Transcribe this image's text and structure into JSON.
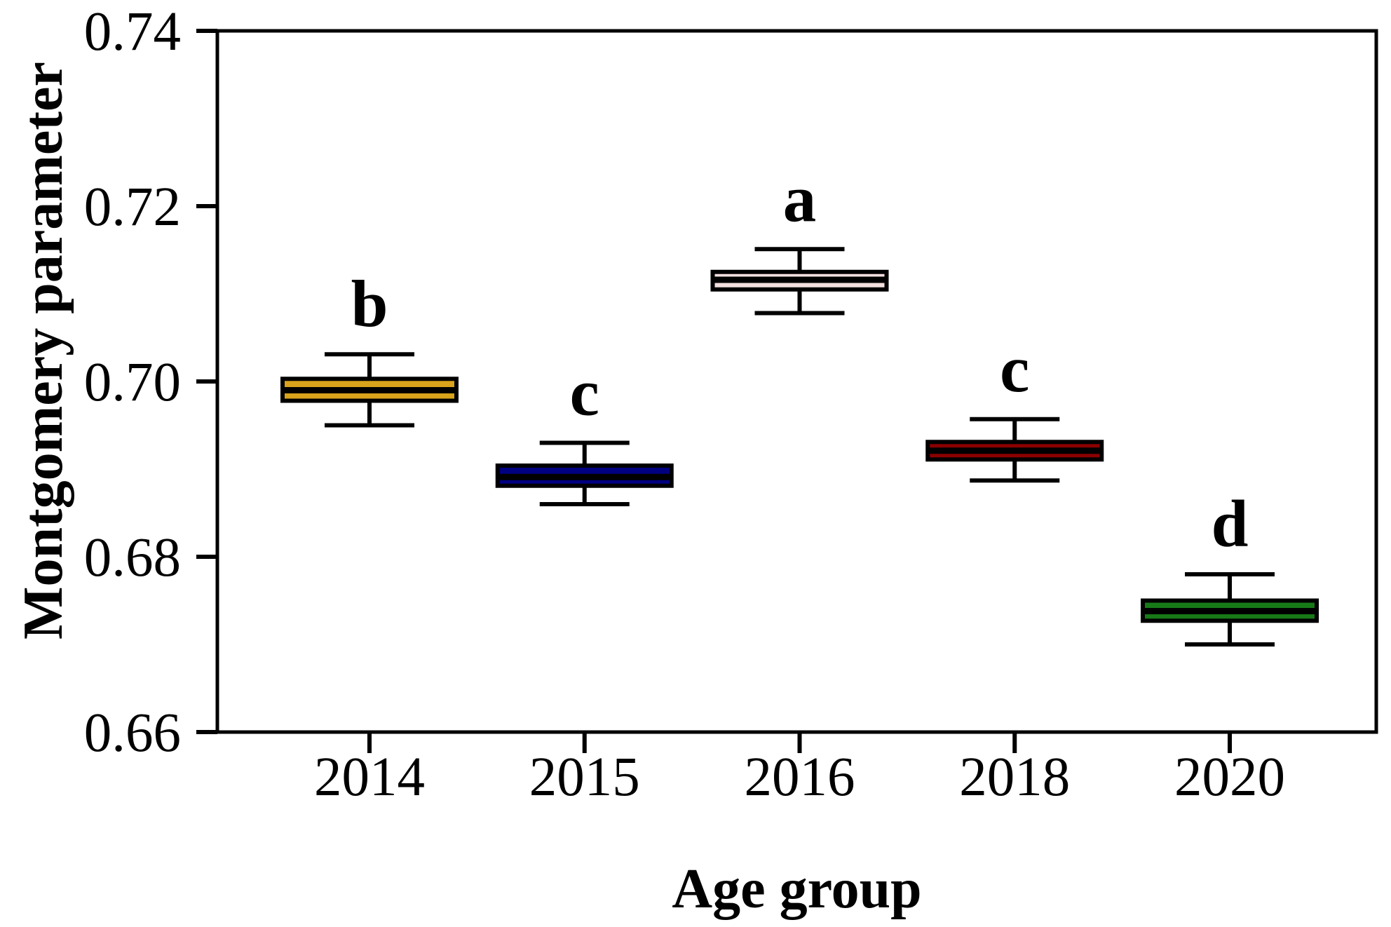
{
  "figure": {
    "background": "#FFFFFF",
    "axis_color": "#000000"
  },
  "chart_data": {
    "type": "boxplot",
    "title": "",
    "xlabel": "Age group",
    "ylabel": "Montgomery parameter",
    "categories": [
      "2014",
      "2015",
      "2016",
      "2018",
      "2020"
    ],
    "ylim": [
      0.66,
      0.74
    ],
    "y_ticks": [
      0.74,
      0.72,
      0.7,
      0.68,
      0.66
    ],
    "y_tick_labels": [
      "0.74",
      "0.72",
      "0.70",
      "0.68",
      "0.66"
    ],
    "grid": false,
    "legend_position": "none",
    "boxes": [
      {
        "category": "2014",
        "significance_letter": "b",
        "whisker_low": 0.695,
        "q1": 0.6978,
        "median": 0.699,
        "q3": 0.7003,
        "whisker_high": 0.7031,
        "fill": "#D9A31B"
      },
      {
        "category": "2015",
        "significance_letter": "c",
        "whisker_low": 0.686,
        "q1": 0.6881,
        "median": 0.6891,
        "q3": 0.6904,
        "whisker_high": 0.693,
        "fill": "#000080"
      },
      {
        "category": "2016",
        "significance_letter": "a",
        "whisker_low": 0.7078,
        "q1": 0.7105,
        "median": 0.7116,
        "q3": 0.7125,
        "whisker_high": 0.7151,
        "fill": "#F2DFDE"
      },
      {
        "category": "2018",
        "significance_letter": "c",
        "whisker_low": 0.6887,
        "q1": 0.6911,
        "median": 0.6921,
        "q3": 0.6931,
        "whisker_high": 0.6957,
        "fill": "#8B0000"
      },
      {
        "category": "2020",
        "significance_letter": "d",
        "whisker_low": 0.67,
        "q1": 0.6727,
        "median": 0.6738,
        "q3": 0.675,
        "whisker_high": 0.678,
        "fill": "#177A17"
      }
    ]
  }
}
